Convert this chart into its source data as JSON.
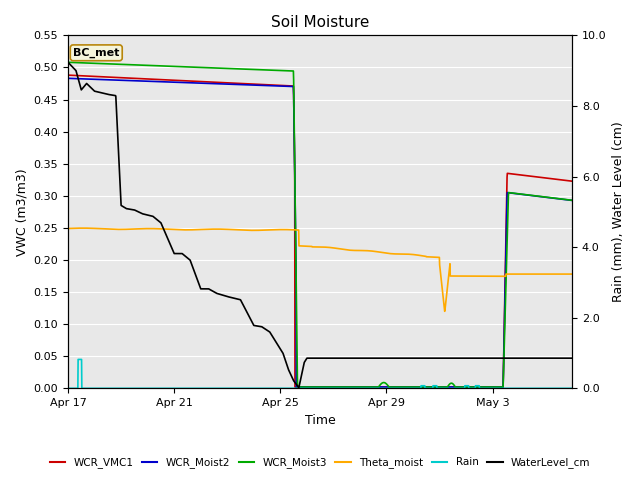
{
  "title": "Soil Moisture",
  "xlabel": "Time",
  "ylabel_left": "VWC (m3/m3)",
  "ylabel_right": "Rain (mm), Water Level (cm)",
  "xlim_days": [
    0,
    19
  ],
  "ylim_left": [
    0,
    0.55
  ],
  "ylim_right": [
    0.0,
    10.0
  ],
  "background_color": "#e8e8e8",
  "annotation_label": "BC_met",
  "annotation_box_color": "#f5f5dc",
  "annotation_border_color": "#b8860b",
  "series": {
    "WCR_VMC1": {
      "color": "#cc0000",
      "lw": 1.2
    },
    "WCR_Moist2": {
      "color": "#0000cc",
      "lw": 1.2
    },
    "WCR_Moist3": {
      "color": "#00aa00",
      "lw": 1.2
    },
    "Theta_moist": {
      "color": "#ffaa00",
      "lw": 1.2
    },
    "Rain": {
      "color": "#00cccc",
      "lw": 1.2
    },
    "WaterLevel_cm": {
      "color": "#000000",
      "lw": 1.2
    }
  },
  "xtick_labels": [
    "Apr 17",
    "Apr 21",
    "Apr 25",
    "Apr 29",
    "May 3"
  ],
  "xtick_positions": [
    0,
    4,
    8,
    12,
    16
  ],
  "ytick_left": [
    0.0,
    0.05,
    0.1,
    0.15,
    0.2,
    0.25,
    0.3,
    0.35,
    0.4,
    0.45,
    0.5,
    0.55
  ],
  "ytick_right": [
    0.0,
    2.0,
    4.0,
    6.0,
    8.0,
    10.0
  ]
}
